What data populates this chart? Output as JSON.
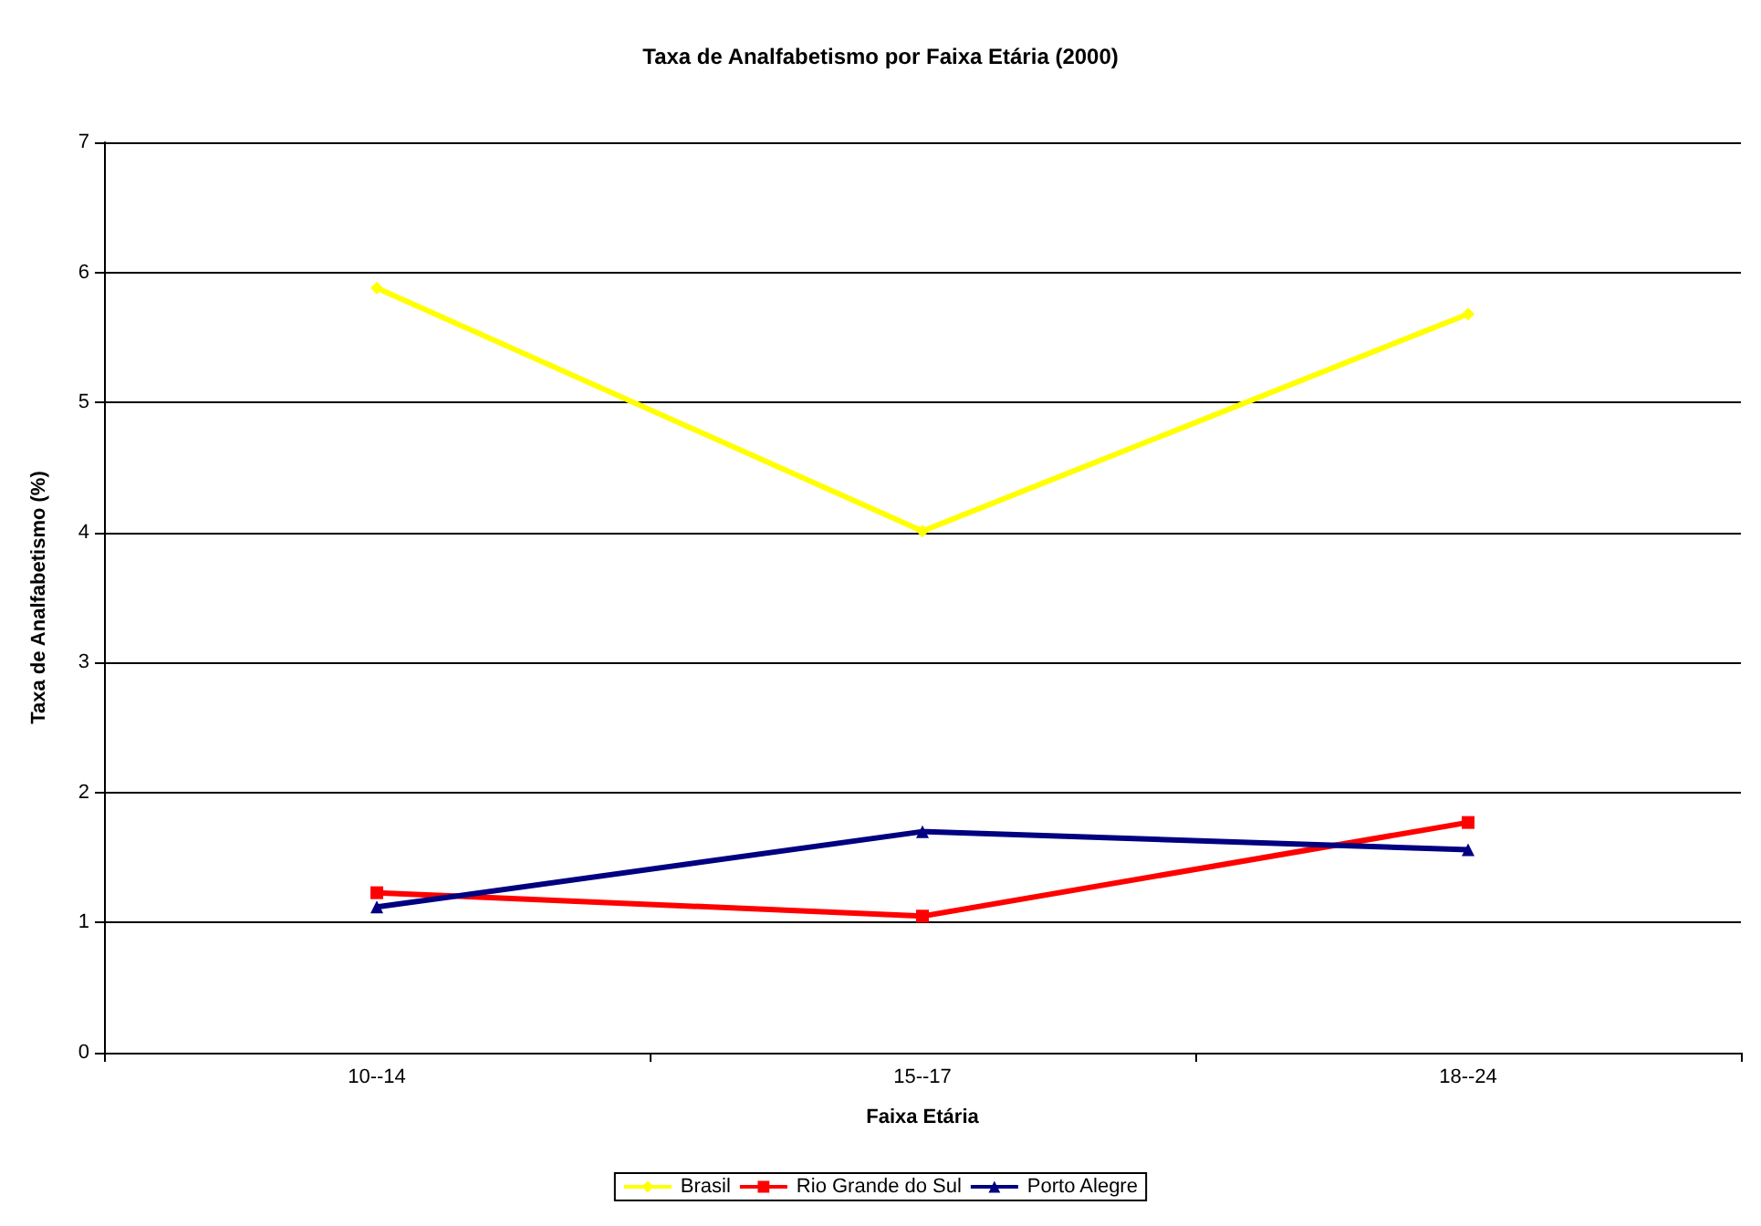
{
  "chart_data": {
    "type": "line",
    "title": "Taxa de Analfabetismo por Faixa Etária (2000)",
    "xlabel": "Faixa Etária",
    "ylabel": "Taxa de Analfabetismo (%)",
    "categories": [
      "10--14",
      "15--17",
      "18--24"
    ],
    "series": [
      {
        "name": "Brasil",
        "color": "#ffff00",
        "values": [
          5.88,
          4.01,
          5.68
        ],
        "marker": "diamond"
      },
      {
        "name": "Rio Grande do Sul",
        "color": "#ff0000",
        "values": [
          1.23,
          1.05,
          1.77
        ],
        "marker": "square"
      },
      {
        "name": "Porto Alegre",
        "color": "#000080",
        "values": [
          1.12,
          1.7,
          1.56
        ],
        "marker": "triangle"
      }
    ],
    "ylim": [
      0,
      7
    ],
    "yticks": [
      0,
      1,
      2,
      3,
      4,
      5,
      6,
      7
    ],
    "grid": "y",
    "legend": "bottom"
  }
}
